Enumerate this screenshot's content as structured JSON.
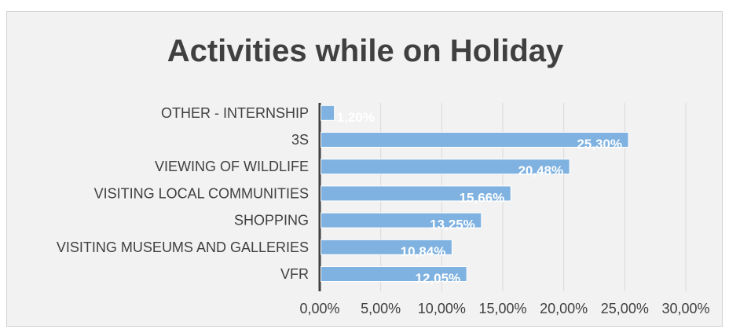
{
  "chart_data": {
    "type": "bar",
    "orientation": "horizontal",
    "title": "Activities while on Holiday",
    "categories": [
      "VFR",
      "VISITING MUSEUMS AND GALLERIES",
      "SHOPPING",
      "VISITING LOCAL COMMUNITIES",
      "VIEWING OF WILDLIFE",
      "3S",
      "OTHER - INTERNSHIP"
    ],
    "values": [
      12.05,
      10.84,
      13.25,
      15.66,
      20.48,
      25.3,
      1.2
    ],
    "data_labels": [
      "12,05%",
      "10,84%",
      "13,25%",
      "15,66%",
      "20,48%",
      "25,30%",
      "1,20%"
    ],
    "xlim": [
      0,
      30
    ],
    "x_ticks": [
      0,
      5,
      10,
      15,
      20,
      25,
      30
    ],
    "x_tick_labels": [
      "0,00%",
      "5,00%",
      "10,00%",
      "15,00%",
      "20,00%",
      "25,00%",
      "30,00%"
    ],
    "grid": true,
    "legend": "none",
    "bar_color": "#7fb2e0",
    "label_color": "#ffffff"
  }
}
